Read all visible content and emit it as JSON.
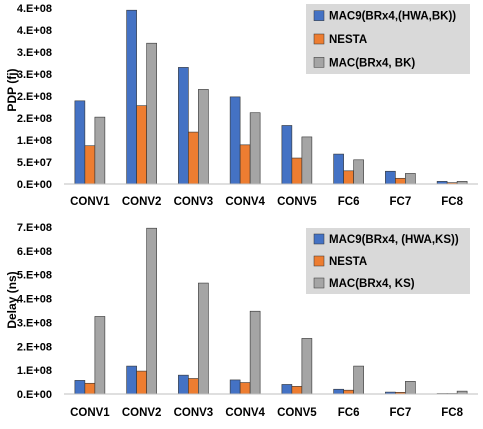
{
  "chart_data": [
    {
      "type": "bar",
      "ylabel": "PDP (fj)",
      "categories": [
        "CONV1",
        "CONV2",
        "CONV3",
        "CONV4",
        "CONV5",
        "FC6",
        "FC7",
        "FC8"
      ],
      "yticks": [
        "0.E+00",
        "5.E+07",
        "1.E+08",
        "2.E+08",
        "2.E+08",
        "3.E+08",
        "3.E+08",
        "4.E+08",
        "4.E+08"
      ],
      "ylim": [
        0,
        400000000
      ],
      "grid": false,
      "legend_position": "top-right",
      "series": [
        {
          "name": "MAC9(BRx4,(HWA,BK))",
          "color": "#4472C4",
          "values": [
            189000000,
            395000000,
            265000000,
            198000000,
            133000000,
            68000000,
            29000000,
            6000000
          ]
        },
        {
          "name": "NESTA",
          "color": "#ED7D31",
          "values": [
            87000000,
            178000000,
            118000000,
            89000000,
            59000000,
            30000000,
            13000000,
            3000000
          ]
        },
        {
          "name": "MAC(BRx4, BK)",
          "color": "#A5A5A5",
          "values": [
            152000000,
            320000000,
            215000000,
            162000000,
            107000000,
            55000000,
            24000000,
            6000000
          ]
        }
      ]
    },
    {
      "type": "bar",
      "ylabel": "Delay (ns)",
      "categories": [
        "CONV1",
        "CONV2",
        "CONV3",
        "CONV4",
        "CONV5",
        "FC6",
        "FC7",
        "FC8"
      ],
      "yticks": [
        "0.E+00",
        "1.E+08",
        "2.E+08",
        "3.E+08",
        "4.E+08",
        "5.E+08",
        "6.E+08",
        "7.E+08"
      ],
      "ylim": [
        0,
        700000000
      ],
      "grid": false,
      "legend_position": "top-right",
      "series": [
        {
          "name": "MAC9(BRx4, (HWA,KS))",
          "color": "#4472C4",
          "values": [
            57000000,
            117000000,
            79000000,
            59000000,
            40000000,
            20000000,
            8000000,
            2000000
          ]
        },
        {
          "name": "NESTA",
          "color": "#ED7D31",
          "values": [
            45000000,
            96000000,
            65000000,
            48000000,
            32000000,
            16000000,
            7000000,
            2000000
          ]
        },
        {
          "name": "MAC(BRx4, KS)",
          "color": "#A5A5A5",
          "values": [
            325000000,
            695000000,
            465000000,
            347000000,
            233000000,
            117000000,
            53000000,
            12000000
          ]
        }
      ]
    }
  ]
}
